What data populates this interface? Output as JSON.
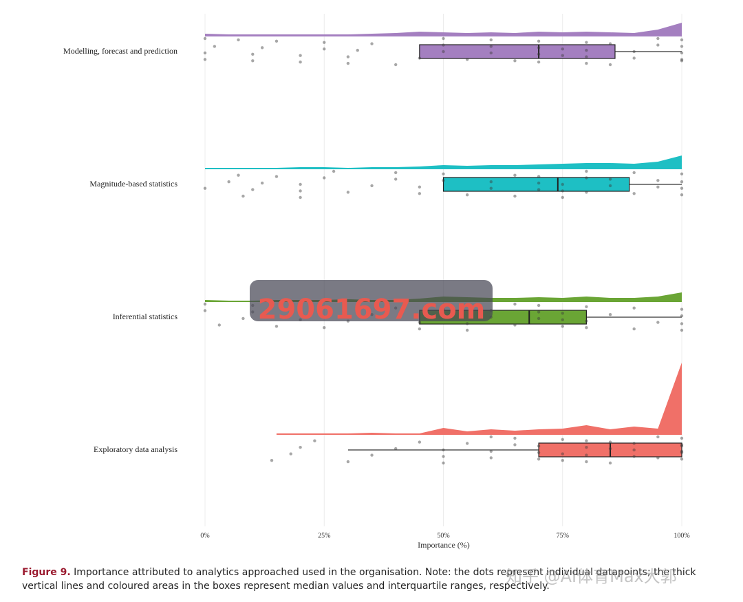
{
  "chart_data": {
    "type": "raincloud",
    "xlabel": "Importance (%)",
    "xlim": [
      0,
      100
    ],
    "xticks": [
      {
        "value": 0,
        "label": "0%"
      },
      {
        "value": 25,
        "label": "25%"
      },
      {
        "value": 50,
        "label": "50%"
      },
      {
        "value": 75,
        "label": "75%"
      },
      {
        "value": 100,
        "label": "100%"
      }
    ],
    "grid": true,
    "density_x": [
      0,
      5,
      10,
      15,
      20,
      25,
      30,
      35,
      40,
      45,
      50,
      55,
      60,
      65,
      70,
      75,
      80,
      85,
      90,
      95,
      100
    ],
    "groups": [
      {
        "name": "Modelling, forecast and prediction",
        "color": "#a47fc0",
        "box": {
          "whisker_low": 45,
          "q1": 45,
          "median": 70,
          "q3": 86,
          "whisker_high": 100
        },
        "density": [
          0.004,
          0.003,
          0.003,
          0.003,
          0.003,
          0.003,
          0.003,
          0.004,
          0.005,
          0.007,
          0.006,
          0.005,
          0.006,
          0.005,
          0.007,
          0.006,
          0.007,
          0.006,
          0.005,
          0.01,
          0.02
        ],
        "points": [
          0,
          0,
          0,
          2,
          7,
          10,
          10,
          12,
          15,
          20,
          20,
          25,
          25,
          30,
          30,
          32,
          35,
          40,
          45,
          50,
          50,
          50,
          55,
          60,
          60,
          60,
          65,
          70,
          70,
          70,
          70,
          75,
          75,
          80,
          80,
          80,
          80,
          85,
          85,
          90,
          90,
          95,
          95,
          100,
          100,
          100,
          100,
          100
        ]
      },
      {
        "name": "Magnitude-based statistics",
        "color": "#1ebfc4",
        "box": {
          "whisker_low": 50,
          "q1": 50,
          "median": 74,
          "q3": 89,
          "whisker_high": 100
        },
        "density": [
          0.002,
          0.002,
          0.002,
          0.002,
          0.003,
          0.003,
          0.002,
          0.003,
          0.003,
          0.004,
          0.006,
          0.005,
          0.006,
          0.006,
          0.007,
          0.008,
          0.009,
          0.009,
          0.008,
          0.011,
          0.02
        ],
        "points": [
          0,
          5,
          7,
          8,
          10,
          12,
          15,
          20,
          20,
          20,
          25,
          27,
          30,
          35,
          40,
          40,
          45,
          45,
          50,
          50,
          55,
          60,
          60,
          65,
          65,
          70,
          70,
          70,
          75,
          75,
          75,
          80,
          80,
          80,
          85,
          85,
          90,
          90,
          95,
          95,
          100,
          100,
          100,
          100
        ]
      },
      {
        "name": "Inferential statistics",
        "color": "#6aa535",
        "box": {
          "whisker_low": 45,
          "q1": 45,
          "median": 68,
          "q3": 80,
          "whisker_high": 100
        },
        "density": [
          0.003,
          0.002,
          0.002,
          0.003,
          0.003,
          0.003,
          0.004,
          0.003,
          0.003,
          0.005,
          0.008,
          0.007,
          0.006,
          0.006,
          0.007,
          0.006,
          0.008,
          0.006,
          0.006,
          0.008,
          0.014
        ],
        "points": [
          0,
          0,
          3,
          8,
          10,
          10,
          15,
          20,
          22,
          25,
          25,
          30,
          35,
          40,
          45,
          45,
          50,
          50,
          55,
          55,
          60,
          60,
          65,
          65,
          70,
          70,
          70,
          75,
          75,
          75,
          80,
          80,
          80,
          85,
          90,
          90,
          95,
          100,
          100,
          100,
          100
        ]
      },
      {
        "name": "Exploratory data analysis",
        "color": "#f07068",
        "box": {
          "whisker_low": 30,
          "q1": 70,
          "median": 85,
          "q3": 100,
          "whisker_high": 100
        },
        "density": [
          null,
          null,
          null,
          0.002,
          0.002,
          0.002,
          0.002,
          0.003,
          0.002,
          0.002,
          0.01,
          0.005,
          0.008,
          0.006,
          0.008,
          0.009,
          0.014,
          0.008,
          0.012,
          0.009,
          0.105
        ],
        "points": [
          14,
          18,
          20,
          23,
          30,
          35,
          40,
          45,
          50,
          50,
          50,
          55,
          60,
          60,
          60,
          65,
          65,
          70,
          70,
          70,
          75,
          75,
          75,
          80,
          80,
          80,
          80,
          85,
          85,
          85,
          90,
          90,
          90,
          95,
          95,
          100,
          100,
          100,
          100,
          100,
          100
        ]
      }
    ]
  },
  "caption": {
    "label": "Figure 9.",
    "text": "Importance attributed to analytics approached used in the organisation. Note: the dots represent individual datapoints; the thick vertical lines and coloured areas in the boxes represent median values and interquartile ranges, respectively."
  },
  "watermarks": [
    "29061697.com",
    "知乎 @AI体育Max大郭"
  ]
}
